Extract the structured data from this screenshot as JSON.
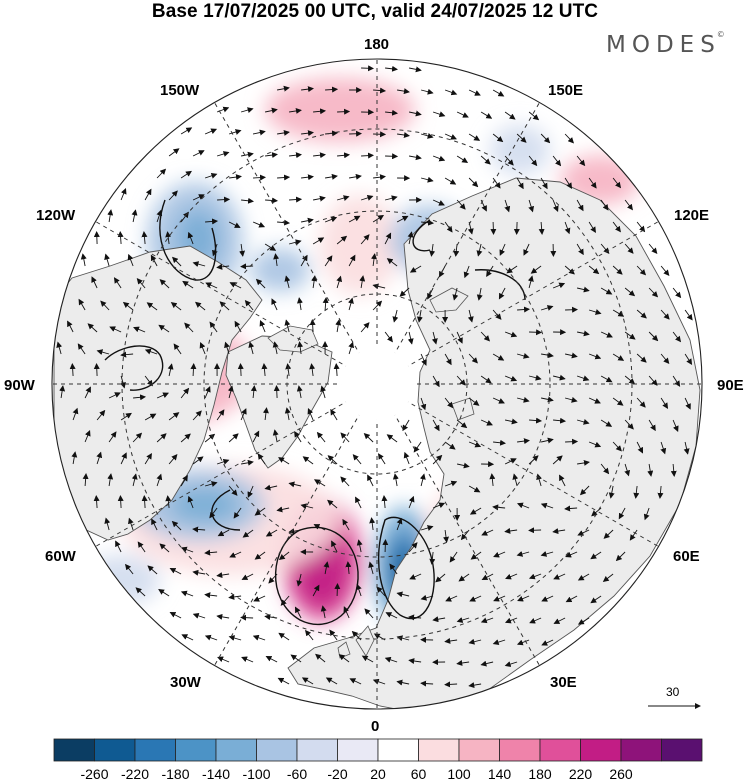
{
  "title": "Base 17/07/2025 00 UTC, valid 24/07/2025 12 UTC",
  "logo": {
    "text": "MODES",
    "mark": "©"
  },
  "longitude_labels": {
    "top": "180",
    "top_left": "150W",
    "top_right": "150E",
    "upper_left": "120W",
    "upper_right": "120E",
    "left": "90W",
    "right": "90E",
    "lower_left": "60W",
    "lower_right": "60E",
    "bottom_left": "30W",
    "bottom_right": "30E",
    "bottom": "0"
  },
  "wind_reference": {
    "value": "30",
    "icon": "reference-arrow-icon"
  },
  "colorbar": {
    "tick_labels": [
      "-260",
      "-220",
      "-180",
      "-140",
      "-100",
      "-60",
      "-20",
      "20",
      "60",
      "100",
      "140",
      "180",
      "220",
      "260"
    ],
    "colors": [
      "#0b3d63",
      "#0f5a92",
      "#2a77b4",
      "#4c93c6",
      "#7aaed6",
      "#a9c4e3",
      "#d3dcef",
      "#e9e9f5",
      "#ffffff",
      "#fbdde0",
      "#f6b4c3",
      "#ef83aa",
      "#e0509a",
      "#c21d85",
      "#8e137a",
      "#5a1070"
    ]
  },
  "map": {
    "projection": "north polar stereographic",
    "colors": {
      "land": "#ededed",
      "coast": "#555555",
      "grid": "#333333"
    }
  }
}
